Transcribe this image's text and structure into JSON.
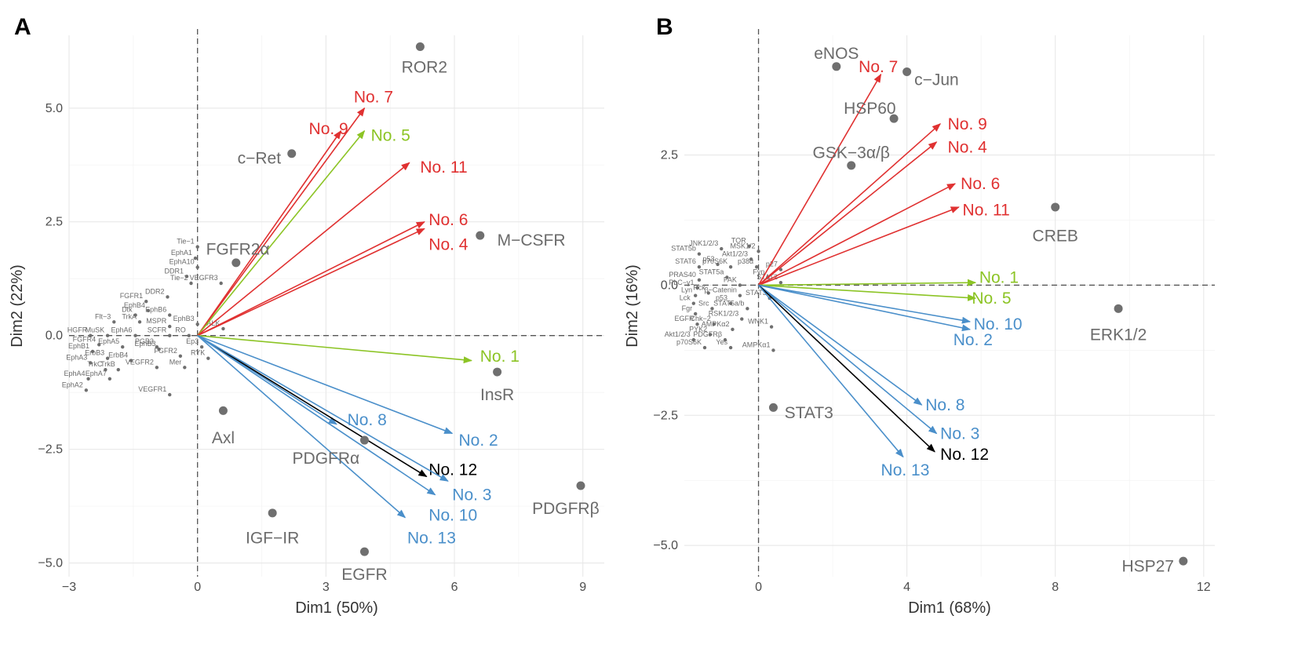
{
  "colors": {
    "red": "#e03131",
    "green": "#8cc425",
    "blue": "#4a8fca",
    "black": "#000000",
    "point": "#6f6f6f",
    "label": "#6b6b6b"
  },
  "chart_data": [
    {
      "type": "scatter",
      "panel": "A",
      "xlabel": "Dim1 (50%)",
      "ylabel": "Dim2 (22%)",
      "xlim": [
        -3,
        9.5
      ],
      "ylim": [
        -5.3,
        6.6
      ],
      "xticks": [
        {
          "v": -3,
          "l": "−3"
        },
        {
          "v": 0,
          "l": "0"
        },
        {
          "v": 3,
          "l": "3"
        },
        {
          "v": 6,
          "l": "6"
        },
        {
          "v": 9,
          "l": "9"
        }
      ],
      "yticks": [
        {
          "v": -5,
          "l": "−5.0"
        },
        {
          "v": -2.5,
          "l": "−2.5"
        },
        {
          "v": 0,
          "l": "0.0"
        },
        {
          "v": 2.5,
          "l": "2.5"
        },
        {
          "v": 5,
          "l": "5.0"
        }
      ],
      "points_large": [
        {
          "label": "ROR2",
          "x": 5.2,
          "y": 6.35,
          "lx": 5.3,
          "ly": 5.9,
          "anchor": "middle"
        },
        {
          "label": "c−Ret",
          "x": 2.2,
          "y": 4.0,
          "lx": 1.95,
          "ly": 3.9,
          "anchor": "end"
        },
        {
          "label": "FGFR2α",
          "x": 0.9,
          "y": 1.6,
          "lx": 0.2,
          "ly": 1.9,
          "anchor": "start"
        },
        {
          "label": "M−CSFR",
          "x": 6.6,
          "y": 2.2,
          "lx": 7.0,
          "ly": 2.1,
          "anchor": "start"
        },
        {
          "label": "InsR",
          "x": 7.0,
          "y": -0.8,
          "lx": 7.0,
          "ly": -1.3,
          "anchor": "middle"
        },
        {
          "label": "Axl",
          "x": 0.6,
          "y": -1.65,
          "lx": 0.6,
          "ly": -2.25,
          "anchor": "middle"
        },
        {
          "label": "PDGFRα",
          "x": 3.9,
          "y": -2.3,
          "lx": 3.0,
          "ly": -2.7,
          "anchor": "middle"
        },
        {
          "label": "PDGFRβ",
          "x": 8.95,
          "y": -3.3,
          "lx": 8.6,
          "ly": -3.8,
          "anchor": "middle"
        },
        {
          "label": "IGF−IR",
          "x": 1.75,
          "y": -3.9,
          "lx": 1.75,
          "ly": -4.45,
          "anchor": "middle"
        },
        {
          "label": "EGFR",
          "x": 3.9,
          "y": -4.75,
          "lx": 3.9,
          "ly": -5.25,
          "anchor": "middle"
        }
      ],
      "points_small": [
        {
          "label": "Tie−1",
          "x": 0.0,
          "y": 1.95
        },
        {
          "label": "EphA1",
          "x": -0.05,
          "y": 1.7
        },
        {
          "label": "EphA10",
          "x": 0.0,
          "y": 1.5
        },
        {
          "label": "DDR1",
          "x": -0.25,
          "y": 1.3
        },
        {
          "label": "Tie−2",
          "x": -0.15,
          "y": 1.15
        },
        {
          "label": "VEGFR3",
          "x": 0.55,
          "y": 1.15
        },
        {
          "label": "FGFR1",
          "x": -1.2,
          "y": 0.75
        },
        {
          "label": "DDR2",
          "x": -0.7,
          "y": 0.85
        },
        {
          "label": "EphB4",
          "x": -1.15,
          "y": 0.55
        },
        {
          "label": "EphB6",
          "x": -0.65,
          "y": 0.45
        },
        {
          "label": "Dtk",
          "x": -1.45,
          "y": 0.45
        },
        {
          "label": "TrkA",
          "x": -1.35,
          "y": 0.3
        },
        {
          "label": "Flt−3",
          "x": -1.95,
          "y": 0.3
        },
        {
          "label": "MSPR",
          "x": -0.65,
          "y": 0.2
        },
        {
          "label": "EphB3",
          "x": 0.0,
          "y": 0.25
        },
        {
          "label": "ALK",
          "x": 0.6,
          "y": 0.15
        },
        {
          "label": "HGFR",
          "x": -2.5,
          "y": 0.0
        },
        {
          "label": "MuSK",
          "x": -2.1,
          "y": 0.0
        },
        {
          "label": "EphA6",
          "x": -1.45,
          "y": 0.0
        },
        {
          "label": "SCFR",
          "x": -0.65,
          "y": 0.0
        },
        {
          "label": "RO",
          "x": -0.2,
          "y": 0.0
        },
        {
          "label": "FGFR4",
          "x": -2.3,
          "y": -0.2
        },
        {
          "label": "EphA5",
          "x": -1.75,
          "y": -0.25
        },
        {
          "label": "PGB3",
          "x": -0.95,
          "y": -0.25
        },
        {
          "label": "EphB3",
          "x": -0.9,
          "y": -0.3
        },
        {
          "label": "Ep3",
          "x": 0.1,
          "y": -0.25
        },
        {
          "label": "EphB1",
          "x": -2.45,
          "y": -0.35
        },
        {
          "label": "ErbB3",
          "x": -2.1,
          "y": -0.5
        },
        {
          "label": "ErbB4",
          "x": -1.55,
          "y": -0.55
        },
        {
          "label": "FGFR2",
          "x": -0.4,
          "y": -0.45
        },
        {
          "label": "RYK",
          "x": 0.25,
          "y": -0.5
        },
        {
          "label": "EphA3",
          "x": -2.5,
          "y": -0.6
        },
        {
          "label": "TrkC",
          "x": -2.15,
          "y": -0.75
        },
        {
          "label": "TrkB",
          "x": -1.85,
          "y": -0.75
        },
        {
          "label": "VEGFR2",
          "x": -0.95,
          "y": -0.7
        },
        {
          "label": "Mer",
          "x": -0.3,
          "y": -0.7
        },
        {
          "label": "EphA4",
          "x": -2.55,
          "y": -0.95
        },
        {
          "label": "EphA7",
          "x": -2.05,
          "y": -0.95
        },
        {
          "label": "EphA2",
          "x": -2.6,
          "y": -1.2
        },
        {
          "label": "VEGFR1",
          "x": -0.65,
          "y": -1.3
        }
      ],
      "vectors": [
        {
          "label": "No. 7",
          "color": "red",
          "x": 3.9,
          "y": 5.0,
          "lx": 3.65,
          "ly": 5.25
        },
        {
          "label": "No. 9",
          "color": "red",
          "x": 3.35,
          "y": 4.5,
          "lx": 2.6,
          "ly": 4.55
        },
        {
          "label": "No. 5",
          "color": "green",
          "x": 3.9,
          "y": 4.5,
          "lx": 4.05,
          "ly": 4.4
        },
        {
          "label": "No. 11",
          "color": "red",
          "x": 4.95,
          "y": 3.8,
          "lx": 5.2,
          "ly": 3.7
        },
        {
          "label": "No. 6",
          "color": "red",
          "x": 5.3,
          "y": 2.5,
          "lx": 5.4,
          "ly": 2.55
        },
        {
          "label": "No. 4",
          "color": "red",
          "x": 5.3,
          "y": 2.35,
          "lx": 5.4,
          "ly": 2.0
        },
        {
          "label": "No. 1",
          "color": "green",
          "x": 6.4,
          "y": -0.55,
          "lx": 6.6,
          "ly": -0.45
        },
        {
          "label": "No. 2",
          "color": "blue",
          "x": 5.95,
          "y": -2.15,
          "lx": 6.1,
          "ly": -2.3
        },
        {
          "label": "No. 8",
          "color": "blue",
          "x": 3.25,
          "y": -1.95,
          "lx": 3.5,
          "ly": -1.85
        },
        {
          "label": "No. 12",
          "color": "black",
          "x": 5.35,
          "y": -3.1,
          "lx": 5.4,
          "ly": -2.95
        },
        {
          "label": "No. 3",
          "color": "blue",
          "x": 5.85,
          "y": -3.2,
          "lx": 5.95,
          "ly": -3.5
        },
        {
          "label": "No. 10",
          "color": "blue",
          "x": 5.55,
          "y": -3.5,
          "lx": 5.4,
          "ly": -3.95
        },
        {
          "label": "No. 13",
          "color": "blue",
          "x": 4.85,
          "y": -4.0,
          "lx": 4.9,
          "ly": -4.45
        }
      ]
    },
    {
      "type": "scatter",
      "panel": "B",
      "xlabel": "Dim1 (68%)",
      "ylabel": "Dim2 (16%)",
      "xlim": [
        -2.0,
        12.3
      ],
      "ylim": [
        -5.6,
        4.8
      ],
      "xticks": [
        {
          "v": 0,
          "l": "0"
        },
        {
          "v": 4,
          "l": "4"
        },
        {
          "v": 8,
          "l": "8"
        },
        {
          "v": 12,
          "l": "12"
        }
      ],
      "yticks": [
        {
          "v": -5,
          "l": "−5.0"
        },
        {
          "v": -2.5,
          "l": "−2.5"
        },
        {
          "v": 0,
          "l": "0.0"
        },
        {
          "v": 2.5,
          "l": "2.5"
        }
      ],
      "points_large": [
        {
          "label": "eNOS",
          "x": 2.1,
          "y": 4.2,
          "lx": 2.1,
          "ly": 4.45,
          "anchor": "middle"
        },
        {
          "label": "c−Jun",
          "x": 4.0,
          "y": 4.1,
          "lx": 4.2,
          "ly": 3.95,
          "anchor": "start"
        },
        {
          "label": "HSP60",
          "x": 3.65,
          "y": 3.2,
          "lx": 3.0,
          "ly": 3.4,
          "anchor": "middle"
        },
        {
          "label": "GSK−3α/β",
          "x": 2.5,
          "y": 2.3,
          "lx": 2.5,
          "ly": 2.55,
          "anchor": "middle"
        },
        {
          "label": "CREB",
          "x": 8.0,
          "y": 1.5,
          "lx": 8.0,
          "ly": 0.95,
          "anchor": "middle"
        },
        {
          "label": "ERK1/2",
          "x": 9.7,
          "y": -0.45,
          "lx": 9.7,
          "ly": -0.95,
          "anchor": "middle"
        },
        {
          "label": "STAT3",
          "x": 0.4,
          "y": -2.35,
          "lx": 0.7,
          "ly": -2.45,
          "anchor": "start"
        },
        {
          "label": "HSP27",
          "x": 11.45,
          "y": -5.3,
          "lx": 11.2,
          "ly": -5.4,
          "anchor": "end"
        }
      ],
      "points_small": [
        {
          "label": "TOR",
          "x": -0.25,
          "y": 0.75
        },
        {
          "label": "MSK1/2",
          "x": 0.0,
          "y": 0.65
        },
        {
          "label": "JNK1/2/3",
          "x": -1.0,
          "y": 0.7
        },
        {
          "label": "Akt1/2/3",
          "x": -0.2,
          "y": 0.5
        },
        {
          "label": "STAT5b",
          "x": -1.6,
          "y": 0.6
        },
        {
          "label": "p53",
          "x": -1.1,
          "y": 0.4
        },
        {
          "label": "p70S6K",
          "x": -0.75,
          "y": 0.35
        },
        {
          "label": "p38α",
          "x": -0.05,
          "y": 0.35
        },
        {
          "label": "p27",
          "x": 0.6,
          "y": 0.3
        },
        {
          "label": "STAT6",
          "x": -1.6,
          "y": 0.35
        },
        {
          "label": "STAT5a",
          "x": -0.85,
          "y": 0.15
        },
        {
          "label": "Fyn",
          "x": 0.25,
          "y": 0.15
        },
        {
          "label": "PRAS40",
          "x": -1.6,
          "y": 0.1
        },
        {
          "label": "STAT2",
          "x": 0.6,
          "y": 0.05
        },
        {
          "label": "PLC−γ1",
          "x": -1.65,
          "y": -0.05
        },
        {
          "label": "FAK",
          "x": -0.5,
          "y": 0.0
        },
        {
          "label": "Hck",
          "x": -1.35,
          "y": -0.15
        },
        {
          "label": "Lyn",
          "x": -1.7,
          "y": -0.2
        },
        {
          "label": "β−Catenin",
          "x": -0.5,
          "y": -0.2
        },
        {
          "label": "p53",
          "x": -0.75,
          "y": -0.35
        },
        {
          "label": "STAT3",
          "x": 0.3,
          "y": -0.25
        },
        {
          "label": "Lck",
          "x": -1.75,
          "y": -0.35
        },
        {
          "label": "Src",
          "x": -1.25,
          "y": -0.45
        },
        {
          "label": "STAT5a/b",
          "x": -0.3,
          "y": -0.45
        },
        {
          "label": "Fgr",
          "x": -1.7,
          "y": -0.55
        },
        {
          "label": "RSK1/2/3",
          "x": -0.45,
          "y": -0.65
        },
        {
          "label": "WNK1",
          "x": 0.35,
          "y": -0.8
        },
        {
          "label": "EGFR",
          "x": -1.65,
          "y": -0.75
        },
        {
          "label": "Chk−2",
          "x": -1.2,
          "y": -0.75
        },
        {
          "label": "AMPKα2",
          "x": -0.7,
          "y": -0.85
        },
        {
          "label": "PYK2",
          "x": -1.3,
          "y": -0.95
        },
        {
          "label": "Akt1/2/3",
          "x": -1.75,
          "y": -1.05
        },
        {
          "label": "PDGFRβ",
          "x": -0.9,
          "y": -1.05
        },
        {
          "label": "p70S6K",
          "x": -1.45,
          "y": -1.2
        },
        {
          "label": "Yes",
          "x": -0.75,
          "y": -1.2
        },
        {
          "label": "AMPKα1",
          "x": 0.4,
          "y": -1.25
        }
      ],
      "vectors": [
        {
          "label": "No. 7",
          "color": "red",
          "x": 3.3,
          "y": 4.05,
          "lx": 2.7,
          "ly": 4.2
        },
        {
          "label": "No. 9",
          "color": "red",
          "x": 4.9,
          "y": 3.1,
          "lx": 5.1,
          "ly": 3.1
        },
        {
          "label": "No. 4",
          "color": "red",
          "x": 4.8,
          "y": 2.75,
          "lx": 5.1,
          "ly": 2.65
        },
        {
          "label": "No. 6",
          "color": "red",
          "x": 5.3,
          "y": 1.95,
          "lx": 5.45,
          "ly": 1.95
        },
        {
          "label": "No. 11",
          "color": "red",
          "x": 5.4,
          "y": 1.5,
          "lx": 5.5,
          "ly": 1.45
        },
        {
          "label": "No. 1",
          "color": "green",
          "x": 5.85,
          "y": 0.05,
          "lx": 5.95,
          "ly": 0.15
        },
        {
          "label": "No. 5",
          "color": "green",
          "x": 5.85,
          "y": -0.25,
          "lx": 5.75,
          "ly": -0.25
        },
        {
          "label": "No. 10",
          "color": "blue",
          "x": 5.7,
          "y": -0.7,
          "lx": 5.8,
          "ly": -0.75
        },
        {
          "label": "No. 2",
          "color": "blue",
          "x": 5.7,
          "y": -0.85,
          "lx": 5.25,
          "ly": -1.05
        },
        {
          "label": "No. 8",
          "color": "blue",
          "x": 4.4,
          "y": -2.3,
          "lx": 4.5,
          "ly": -2.3
        },
        {
          "label": "No. 3",
          "color": "blue",
          "x": 4.8,
          "y": -2.85,
          "lx": 4.9,
          "ly": -2.85
        },
        {
          "label": "No. 12",
          "color": "black",
          "x": 4.75,
          "y": -3.2,
          "lx": 4.9,
          "ly": -3.25
        },
        {
          "label": "No. 13",
          "color": "blue",
          "x": 3.9,
          "y": -3.3,
          "lx": 3.3,
          "ly": -3.55
        }
      ]
    }
  ]
}
